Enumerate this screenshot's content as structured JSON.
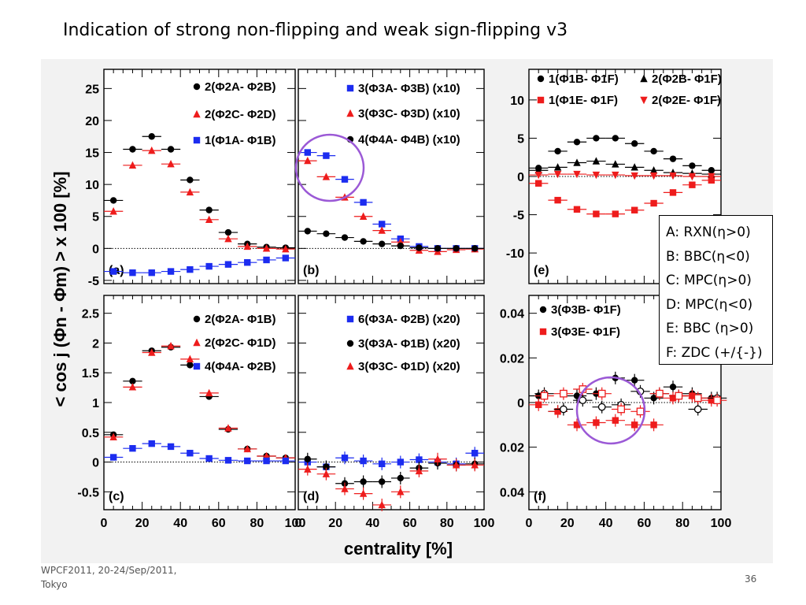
{
  "slide": {
    "title": "Indication of strong non-flipping and weak sign-flipping v3",
    "footer": "WPCF2011, 20-24/Sep/2011, Tokyo",
    "page_number": "36",
    "legend_box": [
      "A: RXN(η>0)",
      "B: BBC(η<0)",
      "C: MPC(η>0)",
      "D: MPC(η<0)",
      "E: BBC (η>0)",
      "F: ZDC (+/{-})"
    ]
  },
  "colors": {
    "black": "#000000",
    "red": "#ee1c1c",
    "blue": "#1c2cf0",
    "circle": "#9b59d6"
  },
  "chart_data": {
    "type": "scatter",
    "ylabel": "< cos j (Φn - Φm) > x 100 [%]",
    "xlabel": "centrality [%]",
    "x": [
      5,
      15,
      25,
      35,
      45,
      55,
      65,
      75,
      85,
      95
    ],
    "panels": [
      {
        "label": "(a)",
        "ylim": [
          -5.5,
          28
        ],
        "yticks": [
          -5,
          0,
          5,
          10,
          15,
          20,
          25
        ],
        "legend_cols": [
          [
            0
          ]
        ],
        "series": [
          {
            "label": "2(Φ2A- Φ2B)",
            "color": "black",
            "marker": "circle",
            "values": [
              7.5,
              15.5,
              17.5,
              15.5,
              10.7,
              6,
              2.5,
              0.7,
              0.2,
              0.1
            ]
          },
          {
            "label": "2(Φ2C- Φ2D)",
            "color": "red",
            "marker": "triangle",
            "values": [
              5.8,
              13,
              15.3,
              13.2,
              8.8,
              4.5,
              1.5,
              0.3,
              0,
              -0.1
            ]
          },
          {
            "label": "1(Φ1A- Φ1B)",
            "color": "blue",
            "marker": "square",
            "values": [
              -3.6,
              -3.8,
              -3.8,
              -3.6,
              -3.3,
              -2.8,
              -2.5,
              -2.2,
              -1.8,
              -1.5
            ]
          }
        ]
      },
      {
        "label": "(b)",
        "ylim": [
          -5.5,
          28
        ],
        "yticks": [],
        "series": [
          {
            "label": "3(Φ3A- Φ3B) (x10)",
            "color": "blue",
            "marker": "square",
            "values": [
              15,
              14.5,
              10.8,
              7.2,
              3.8,
              1.5,
              0.3,
              0,
              0,
              0
            ]
          },
          {
            "label": "3(Φ3C- Φ3D) (x10)",
            "color": "red",
            "marker": "triangle",
            "values": [
              13.7,
              11.2,
              8,
              5,
              2.8,
              1,
              -0.3,
              -0.5,
              -0.2,
              -0.1
            ]
          },
          {
            "label": "4(Φ4A- Φ4B) (x10)",
            "color": "black",
            "marker": "circle",
            "values": [
              2.7,
              2.3,
              1.7,
              1.1,
              0.7,
              0.4,
              0.1,
              0,
              0,
              0
            ]
          }
        ]
      },
      {
        "label": "(e)",
        "ylim": [
          -14,
          14
        ],
        "yticks": [
          -10,
          -5,
          0,
          5,
          10
        ],
        "series": [
          {
            "label": "1(Φ1B- Φ1F)",
            "color": "black",
            "marker": "circle",
            "values": [
              1.1,
              3.3,
              4.5,
              5,
              5,
              4.3,
              3.3,
              2.3,
              1.4,
              0.8
            ]
          },
          {
            "label": "1(Φ1E- Φ1F)",
            "color": "red",
            "marker": "square",
            "values": [
              -0.9,
              -3.1,
              -4.3,
              -4.9,
              -4.9,
              -4.4,
              -3.5,
              -2.1,
              -1.1,
              -0.5
            ]
          },
          {
            "label": "2(Φ2B- Φ1F)",
            "color": "black",
            "marker": "triangle",
            "values": [
              0.8,
              1.2,
              1.8,
              2,
              1.6,
              1.2,
              0.8,
              0.5,
              0.4,
              0.3
            ]
          },
          {
            "label": "2(Φ2E- Φ1F)",
            "color": "red",
            "marker": "triangle-down",
            "values": [
              0.2,
              0.3,
              0.3,
              0.2,
              0.2,
              0.1,
              0.1,
              0.1,
              0,
              0
            ]
          }
        ]
      },
      {
        "label": "(c)",
        "ylim": [
          -0.8,
          2.8
        ],
        "yticks": [
          -0.5,
          0,
          0.5,
          1,
          1.5,
          2,
          2.5
        ],
        "series": [
          {
            "label": "2(Φ2A- Φ1B)",
            "color": "black",
            "marker": "circle",
            "values": [
              0.46,
              1.36,
              1.87,
              1.93,
              1.63,
              1.1,
              0.55,
              0.22,
              0.1,
              0.07
            ]
          },
          {
            "label": "2(Φ2C- Φ1D)",
            "color": "red",
            "marker": "triangle",
            "values": [
              0.42,
              1.26,
              1.84,
              1.95,
              1.73,
              1.16,
              0.57,
              0.22,
              0.1,
              0.07
            ]
          },
          {
            "label": "4(Φ4A- Φ2B)",
            "color": "blue",
            "marker": "square",
            "values": [
              0.08,
              0.23,
              0.31,
              0.26,
              0.15,
              0.06,
              0.03,
              0.02,
              0.02,
              0.02
            ]
          }
        ]
      },
      {
        "label": "(d)",
        "ylim": [
          -0.8,
          2.8
        ],
        "yticks": [],
        "series": [
          {
            "label": "6(Φ3A- Φ2B) (x20)",
            "color": "blue",
            "marker": "square",
            "values": [
              0.0,
              -0.08,
              0.07,
              0.02,
              -0.03,
              0.0,
              0.04,
              0.0,
              -0.03,
              0.15
            ]
          },
          {
            "label": "3(Φ3A- Φ1B) (x20)",
            "color": "black",
            "marker": "circle",
            "values": [
              0.05,
              -0.08,
              -0.36,
              -0.33,
              -0.33,
              -0.27,
              -0.1,
              -0.02,
              -0.05,
              -0.03
            ]
          },
          {
            "label": "3(Φ3C- Φ1D) (x20)",
            "color": "red",
            "marker": "triangle",
            "values": [
              -0.12,
              -0.2,
              -0.45,
              -0.53,
              -0.72,
              -0.5,
              -0.15,
              0.05,
              -0.05,
              -0.05
            ]
          }
        ]
      },
      {
        "label": "(f)",
        "ylim": [
          -0.048,
          0.048
        ],
        "ytick_labels": [
          "0.04",
          "0.02",
          "0",
          "0.02",
          "0.04"
        ],
        "yticks": [
          0.04,
          0.02,
          0,
          -0.02,
          -0.04
        ],
        "series": [
          {
            "label": "3(Φ3B- Φ1F)",
            "color": "black",
            "marker": "circle",
            "values": [
              0.003,
              -0.004,
              0.003,
              0.004,
              0.011,
              0.01,
              0.002,
              0.007,
              0.004,
              0.002
            ]
          },
          {
            "label": "3(Φ3E- Φ1F)",
            "color": "red",
            "marker": "square",
            "values": [
              -0.001,
              -0.004,
              -0.01,
              -0.009,
              -0.008,
              -0.01,
              -0.01,
              0.002,
              0.003,
              0.001
            ]
          },
          {
            "label": "open black",
            "color": "black",
            "marker": "open-circle",
            "values": [
              0.004,
              -0.003,
              0.001,
              -0.002,
              -0.001,
              0.005,
              0.004,
              0.003,
              -0.003,
              0.002
            ]
          },
          {
            "label": "open red",
            "color": "red",
            "marker": "open-square",
            "values": [
              0.003,
              0.004,
              0.006,
              0.004,
              -0.003,
              -0.004,
              0.004,
              0.003,
              0.002,
              0.001
            ]
          }
        ]
      }
    ],
    "xticks": [
      0,
      20,
      40,
      60,
      80,
      100
    ],
    "xlim": [
      0,
      100
    ],
    "annotations": [
      "purple circle in panel (b) around low centrality points",
      "purple circle in panel (f) around 30-50% points"
    ]
  }
}
